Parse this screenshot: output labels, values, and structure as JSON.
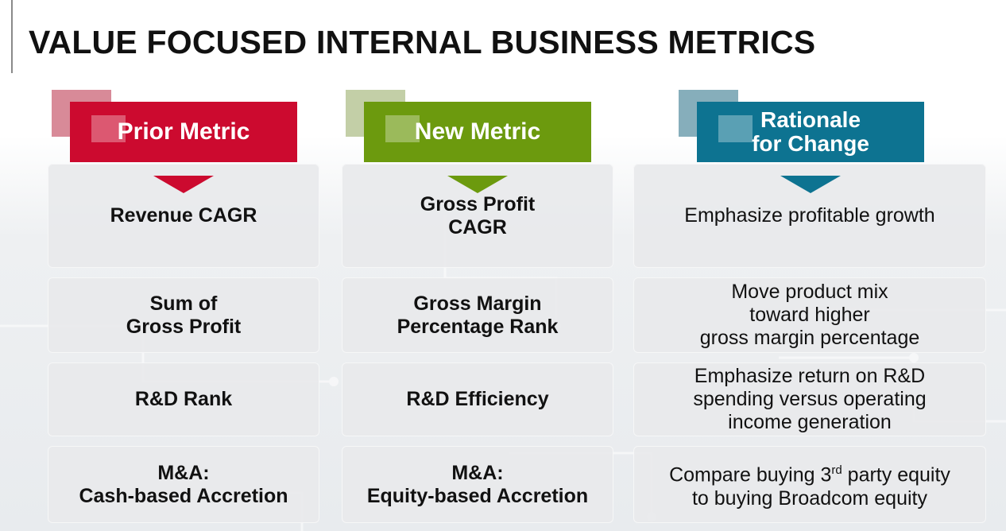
{
  "title": "VALUE FOCUSED INTERNAL BUSINESS METRICS",
  "colors": {
    "prior": "#cc0a2f",
    "prior_back": "#d88a98",
    "new": "#6c9a0e",
    "new_back": "#c3cfa7",
    "rationale": "#0d7391",
    "rationale_back": "#86aebb"
  },
  "headers": {
    "prior": "Prior Metric",
    "new": "New Metric",
    "rationale_line1": "Rationale",
    "rationale_line2": "for Change"
  },
  "rows": [
    {
      "prior": "Revenue CAGR",
      "new": "Gross Profit\nCAGR",
      "rationale": "Emphasize profitable growth"
    },
    {
      "prior": "Sum of\nGross Profit",
      "new": "Gross Margin\nPercentage Rank",
      "rationale": "Move product mix\ntoward higher\ngross margin percentage"
    },
    {
      "prior": "R&D Rank",
      "new": "R&D Efficiency",
      "rationale": "Emphasize return on R&D\nspending versus operating\nincome generation"
    },
    {
      "prior": "M&A:\nCash-based Accretion",
      "new": "M&A:\nEquity-based Accretion",
      "rationale_pre": "Compare buying 3",
      "rationale_sup": "rd",
      "rationale_post": " party equity",
      "rationale_line2": "to buying Broadcom equity"
    }
  ]
}
